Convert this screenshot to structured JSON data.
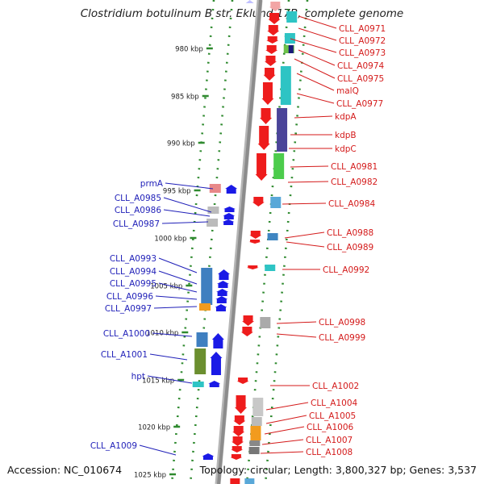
{
  "title": "Clostridium botulinum B str. Eklund 17B, complete genome",
  "footer": {
    "accession": "Accession: NC_010674",
    "topology": "Topology: circular; Length: 3,800,327 bp; Genes: 3,537"
  },
  "scale_ticks": [
    "980 kbp",
    "985 kbp",
    "990 kbp",
    "995 kbp",
    "1000 kbp",
    "1005 kbp",
    "1010 kbp",
    "1015 kbp",
    "1020 kbp",
    "1025 kbp"
  ],
  "colors": {
    "forward_strand": "#ee1c1c",
    "reverse_strand": "#1a1ae6",
    "forward_label": "#d41a1a",
    "reverse_label": "#1f1fb8",
    "backbone": "#8c8c8c",
    "tick": "#2f8a2f"
  },
  "forward_genes": [
    "CLL_A0971",
    "CLL_A0972",
    "CLL_A0973",
    "CLL_A0974",
    "CLL_A0975",
    "malQ",
    "CLL_A0977",
    "kdpA",
    "kdpB",
    "kdpC",
    "CLL_A0981",
    "CLL_A0982",
    "CLL_A0984",
    "CLL_A0988",
    "CLL_A0989",
    "CLL_A0992",
    "CLL_A0998",
    "CLL_A0999",
    "CLL_A1002",
    "CLL_A1004",
    "CLL_A1005",
    "CLL_A1006",
    "CLL_A1007",
    "CLL_A1008"
  ],
  "reverse_genes": [
    "prmA",
    "CLL_A0985",
    "CLL_A0986",
    "CLL_A0987",
    "CLL_A0993",
    "CLL_A0994",
    "CLL_A0995",
    "CLL_A0996",
    "CLL_A0997",
    "CLL_A1000",
    "CLL_A1001",
    "hpt",
    "CLL_A1009"
  ]
}
